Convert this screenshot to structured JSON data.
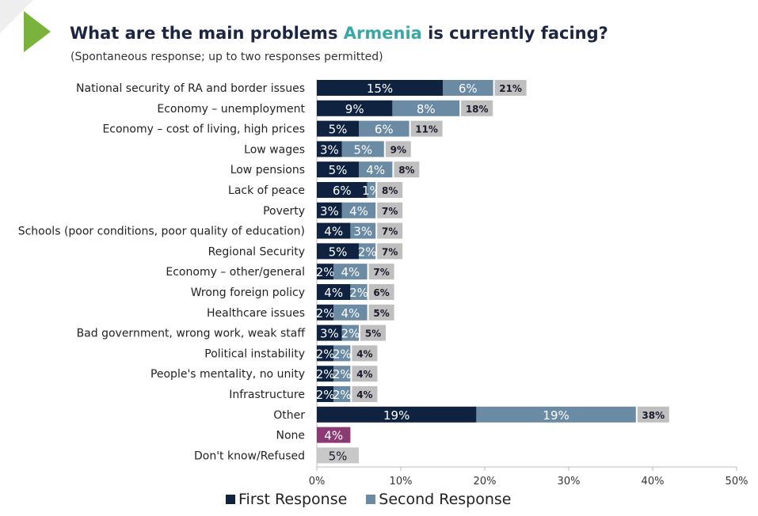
{
  "header": {
    "title_prefix": "What are the main problems ",
    "title_highlight": "Armenia",
    "title_suffix": " is currently facing?",
    "subtitle": "(Spontaneous response; up to two responses permitted)"
  },
  "colors": {
    "first": "#0f2340",
    "second": "#6b8aa3",
    "total": "#bfbfbf",
    "none": "#8b3a73",
    "dontknow": "#c8c8c8",
    "accent": "#3aa6a6",
    "arrow": "#7ab33b"
  },
  "chart_data": {
    "type": "bar",
    "orientation": "horizontal",
    "stacked": true,
    "categories": [
      "National security of RA and border issues",
      "Economy – unemployment",
      "Economy – cost of living, high prices",
      "Low wages",
      "Low pensions",
      "Lack of peace",
      "Poverty",
      "Schools (poor conditions, poor quality of education)",
      "Regional Security",
      "Economy – other/general",
      "Wrong foreign policy",
      "Healthcare issues",
      "Bad government, wrong work, weak staff",
      "Political instability",
      "People's mentality, no unity",
      "Infrastructure",
      "Other",
      "None",
      "Don't know/Refused"
    ],
    "series": [
      {
        "name": "First Response",
        "values": [
          15,
          9,
          5,
          3,
          5,
          6,
          3,
          4,
          5,
          2,
          4,
          2,
          3,
          2,
          2,
          2,
          19,
          4,
          5
        ],
        "labels": [
          "15%",
          "9%",
          "5%",
          "3%",
          "5%",
          "6%",
          "3%",
          "4%",
          "5%",
          "2%",
          "4%",
          "2%",
          "3%",
          "2%",
          "2%",
          "2%",
          "19%",
          "4%",
          "5%"
        ]
      },
      {
        "name": "Second Response",
        "values": [
          6,
          8,
          6,
          5,
          4,
          1,
          4,
          3,
          2,
          4,
          2,
          4,
          2,
          2,
          2,
          2,
          19,
          0,
          0
        ],
        "labels": [
          "6%",
          "8%",
          "6%",
          "5%",
          "4%",
          "1%",
          "4%",
          "3%",
          "2%",
          "4%",
          "2%",
          "4%",
          "2%",
          "2%",
          "2%",
          "2%",
          "19%",
          "",
          ""
        ]
      }
    ],
    "totals": [
      "21%",
      "18%",
      "11%",
      "9%",
      "8%",
      "8%",
      "7%",
      "7%",
      "7%",
      "7%",
      "6%",
      "5%",
      "5%",
      "4%",
      "4%",
      "4%",
      "38%",
      "",
      ""
    ],
    "special_rows": {
      "None": "none",
      "Don't know/Refused": "dontknow"
    },
    "xlim": [
      0,
      50
    ],
    "xticks": [
      "0%",
      "10%",
      "20%",
      "30%",
      "40%",
      "50%"
    ],
    "legend": [
      {
        "label": "First Response",
        "color": "#0f2340"
      },
      {
        "label": "Second Response",
        "color": "#6b8aa3"
      }
    ],
    "legend_position": "bottom"
  }
}
